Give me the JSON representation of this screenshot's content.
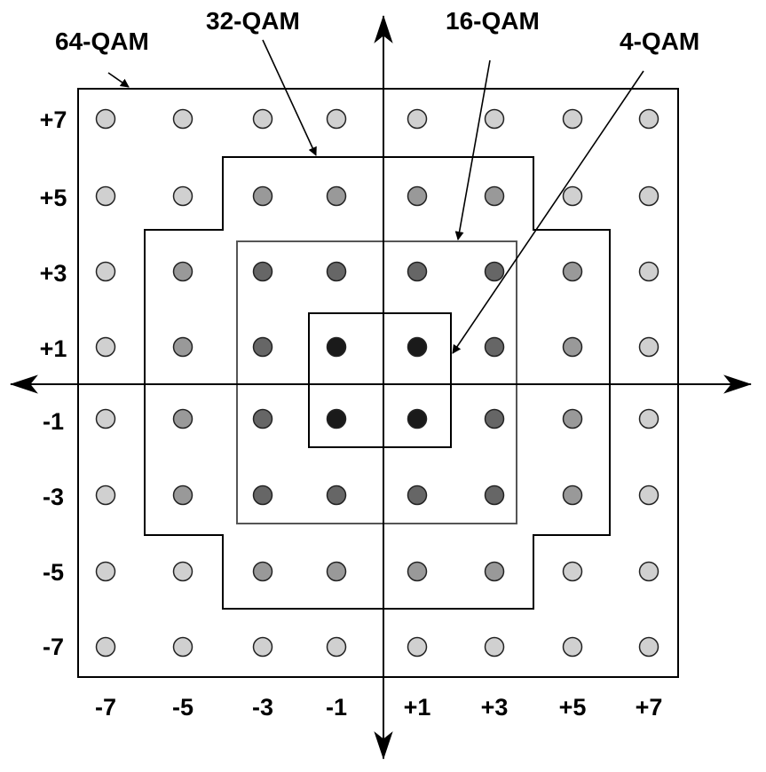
{
  "labels": {
    "qam64": "64-QAM",
    "qam32": "32-QAM",
    "qam16": "16-QAM",
    "qam4": "4-QAM"
  },
  "x_ticks": [
    "-7",
    "-5",
    "-3",
    "-1",
    "+1",
    "+3",
    "+5",
    "+7"
  ],
  "y_ticks": [
    "+7",
    "+5",
    "+3",
    "+1",
    "-1",
    "-3",
    "-5",
    "-7"
  ],
  "constellation": {
    "levels": [
      -7,
      -5,
      -3,
      -1,
      1,
      3,
      5,
      7
    ],
    "ring_colors": {
      "qam4": "#1a1a1a",
      "qam16": "#666666",
      "qam32": "#999999",
      "qam64": "#d0d0d0"
    }
  }
}
